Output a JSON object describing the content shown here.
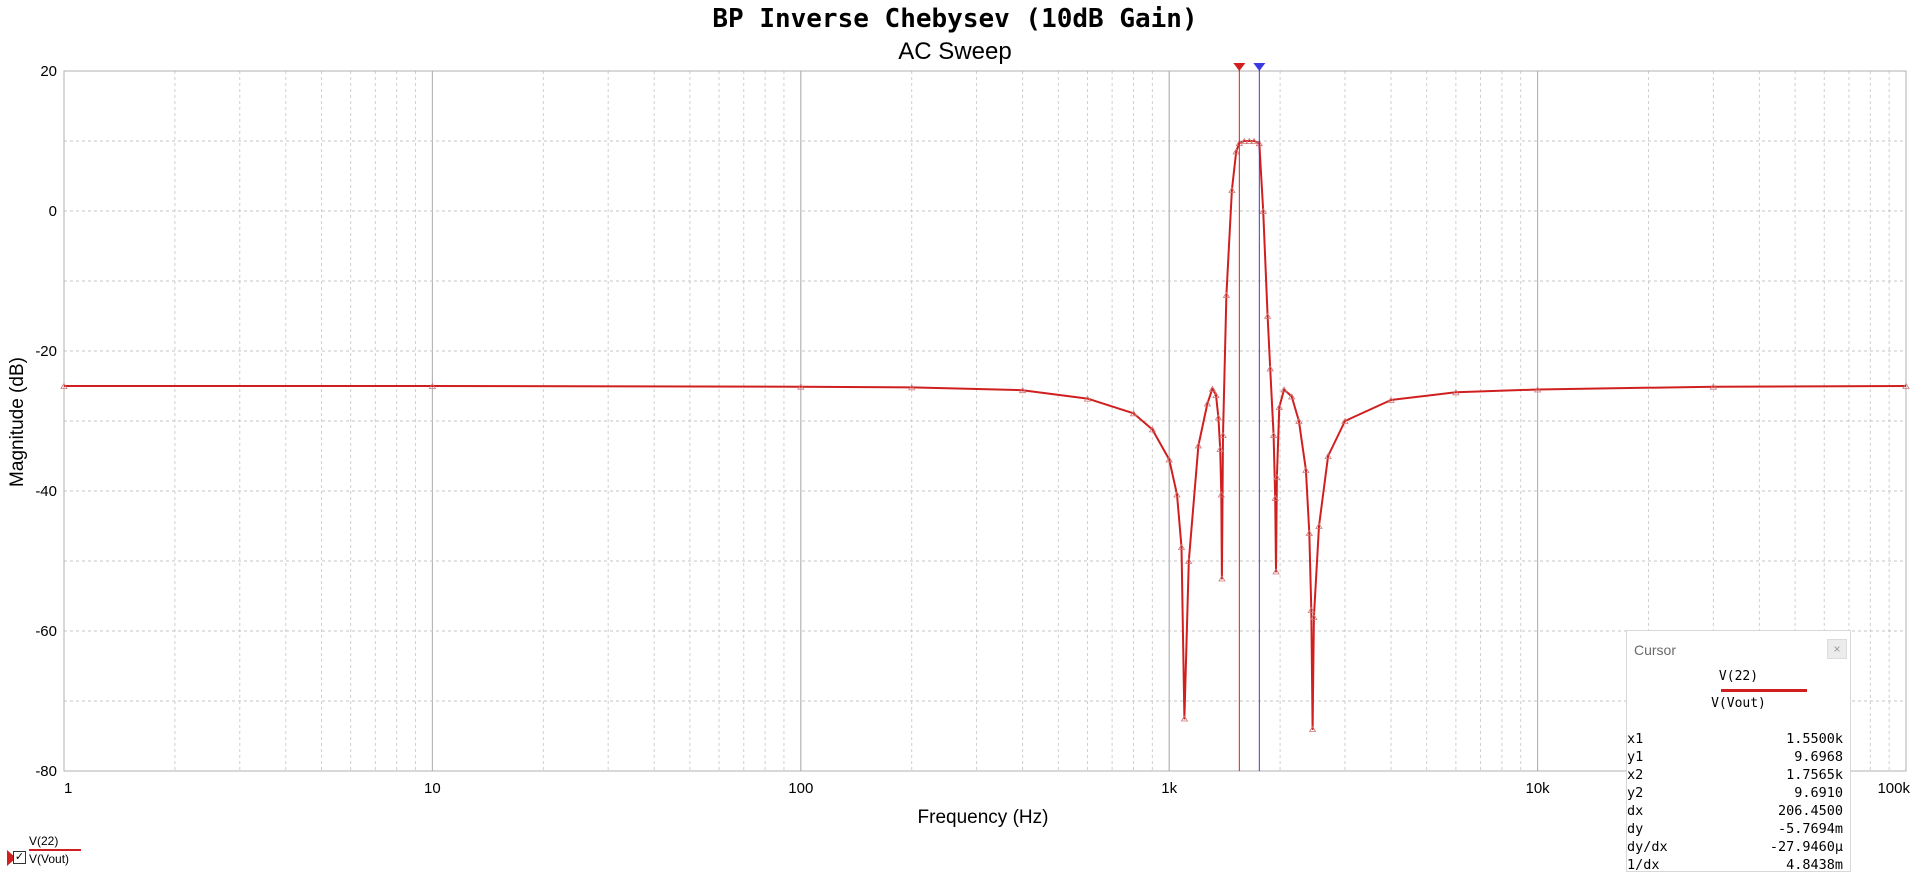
{
  "chart_data": {
    "type": "line",
    "title": "BP Inverse Chebysev (10dB Gain)",
    "subtitle": "AC Sweep",
    "xlabel": "Frequency (Hz)",
    "ylabel": "Magnitude (dB)",
    "xscale": "log",
    "xlim": [
      1,
      100000
    ],
    "ylim": [
      -80,
      20
    ],
    "grid": true,
    "x_ticks": [
      "1",
      "10",
      "100",
      "1k",
      "10k",
      "100k"
    ],
    "y_ticks": [
      "20",
      "0",
      "-20",
      "-40",
      "-60",
      "-80"
    ],
    "series": [
      {
        "name": "V(22)",
        "color": "#d01f1f",
        "x": [
          1,
          10,
          100,
          200,
          400,
          600,
          800,
          900,
          1000,
          1050,
          1080,
          1100,
          1130,
          1200,
          1270,
          1310,
          1340,
          1360,
          1375,
          1385,
          1390,
          1400,
          1430,
          1480,
          1520,
          1550,
          1600,
          1650,
          1700,
          1756,
          1800,
          1850,
          1880,
          1920,
          1940,
          1950,
          1960,
          1990,
          2050,
          2150,
          2250,
          2350,
          2400,
          2430,
          2450,
          2470,
          2550,
          2700,
          3000,
          4000,
          6000,
          10000,
          30000,
          100000
        ],
        "y": [
          -25,
          -25,
          -25.1,
          -25.2,
          -25.6,
          -26.8,
          -28.9,
          -31.2,
          -35.5,
          -40.5,
          -48,
          -72.5,
          -50,
          -33.5,
          -27.5,
          -25.4,
          -26.3,
          -29.5,
          -34,
          -40.5,
          -52.5,
          -32,
          -12,
          3,
          8.5,
          9.7,
          10,
          10,
          10,
          9.69,
          0,
          -15,
          -22.5,
          -32,
          -41,
          -51.5,
          -38,
          -28,
          -25.5,
          -26.5,
          -30,
          -37,
          -46,
          -57,
          -74,
          -58,
          -45,
          -35,
          -30,
          -27,
          -25.9,
          -25.5,
          -25.1,
          -25
        ]
      }
    ],
    "cursors": [
      {
        "label": "x1",
        "x": 1550,
        "color": "#d01f1f"
      },
      {
        "label": "x2",
        "x": 1756.5,
        "color": "#3a3ae0"
      }
    ]
  },
  "cursor_panel": {
    "title": "Cursor",
    "close_glyph": "×",
    "trace1": "V(22)",
    "trace2": "V(Vout)",
    "rows": [
      {
        "k": "x1",
        "v": "1.5500k"
      },
      {
        "k": "y1",
        "v": "9.6968"
      },
      {
        "k": "x2",
        "v": "1.7565k"
      },
      {
        "k": "y2",
        "v": "9.6910"
      },
      {
        "k": "dx",
        "v": "206.4500"
      },
      {
        "k": "dy",
        "v": "-5.7694m"
      },
      {
        "k": "dy/dx",
        "v": "-27.9460μ"
      },
      {
        "k": "1/dx",
        "v": "4.8438m"
      }
    ]
  },
  "legend": {
    "trace1": "V(22)",
    "trace2": "V(Vout)",
    "checkbox_checked": true
  }
}
